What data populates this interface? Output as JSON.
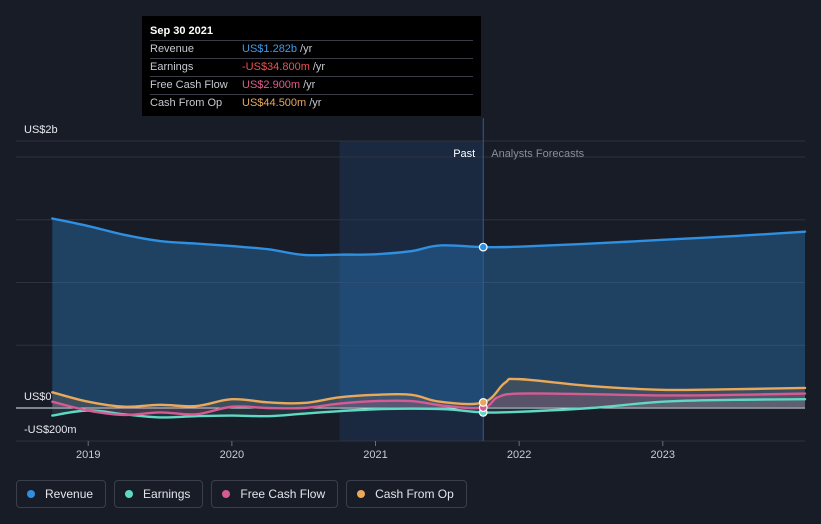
{
  "tooltip": {
    "date": "Sep 30 2021",
    "rows": [
      {
        "name": "Revenue",
        "value": "US$1.282b",
        "unit": "/yr",
        "color": "#3d9be9"
      },
      {
        "name": "Earnings",
        "value": "-US$34.800m",
        "unit": "/yr",
        "color": "#f05050"
      },
      {
        "name": "Free Cash Flow",
        "value": "US$2.900m",
        "unit": "/yr",
        "color": "#e05b8e"
      },
      {
        "name": "Cash From Op",
        "value": "US$44.500m",
        "unit": "/yr",
        "color": "#e9a85a"
      }
    ]
  },
  "legend": [
    {
      "label": "Revenue",
      "color": "#2f8fe0"
    },
    {
      "label": "Earnings",
      "color": "#5fd8c4"
    },
    {
      "label": "Free Cash Flow",
      "color": "#d65b94"
    },
    {
      "label": "Cash From Op",
      "color": "#e9a85a"
    }
  ],
  "chart_data": {
    "type": "line",
    "title": "",
    "y_unit_labels": [
      "US$2b",
      "US$0",
      "-US$200m"
    ],
    "ylim": [
      -200,
      2000
    ],
    "xlim": [
      2018.72,
      2023.99
    ],
    "x_ticks": [
      2019,
      2020,
      2021,
      2022,
      2023
    ],
    "x_tick_labels": [
      "2019",
      "2020",
      "2021",
      "2022",
      "2023"
    ],
    "past_label": "Past",
    "forecast_label": "Analysts Forecasts",
    "past_end": 2021.75,
    "highlight_start": 2020.75,
    "series": [
      {
        "name": "Revenue",
        "color": "#2f8fe0",
        "x": [
          2018.75,
          2019.0,
          2019.25,
          2019.5,
          2019.75,
          2020.0,
          2020.25,
          2020.5,
          2020.75,
          2021.0,
          2021.25,
          2021.45,
          2021.75,
          2022.0,
          2022.5,
          2023.0,
          2023.5,
          2023.99
        ],
        "values": [
          1510,
          1450,
          1380,
          1330,
          1310,
          1290,
          1265,
          1220,
          1222,
          1225,
          1250,
          1295,
          1282,
          1285,
          1310,
          1340,
          1370,
          1405
        ]
      },
      {
        "name": "Earnings",
        "color": "#5fd8c4",
        "x": [
          2018.75,
          2019.0,
          2019.25,
          2019.5,
          2019.75,
          2020.0,
          2020.25,
          2020.5,
          2020.75,
          2021.0,
          2021.25,
          2021.5,
          2021.75,
          2022.0,
          2022.5,
          2023.0,
          2023.5,
          2023.99
        ],
        "values": [
          -60,
          -20,
          -50,
          -75,
          -65,
          -60,
          -65,
          -45,
          -25,
          -10,
          -5,
          -10,
          -35,
          -30,
          0,
          50,
          65,
          70
        ]
      },
      {
        "name": "Free Cash Flow",
        "color": "#d65b94",
        "x": [
          2018.75,
          2019.0,
          2019.25,
          2019.5,
          2019.75,
          2020.0,
          2020.25,
          2020.5,
          2020.75,
          2021.0,
          2021.25,
          2021.5,
          2021.75,
          2021.85,
          2022.0,
          2022.5,
          2023.0,
          2023.5,
          2023.99
        ],
        "values": [
          50,
          -20,
          -55,
          -35,
          -50,
          10,
          0,
          0,
          35,
          55,
          55,
          15,
          3,
          85,
          115,
          110,
          100,
          105,
          115
        ]
      },
      {
        "name": "Cash From Op",
        "color": "#e9a85a",
        "x": [
          2018.75,
          2019.0,
          2019.25,
          2019.5,
          2019.75,
          2020.0,
          2020.25,
          2020.5,
          2020.75,
          2021.0,
          2021.25,
          2021.45,
          2021.75,
          2021.9,
          2022.0,
          2022.5,
          2023.0,
          2023.5,
          2023.99
        ],
        "values": [
          125,
          50,
          10,
          25,
          15,
          70,
          45,
          40,
          85,
          105,
          105,
          50,
          44.5,
          200,
          230,
          175,
          145,
          150,
          160
        ]
      }
    ]
  }
}
